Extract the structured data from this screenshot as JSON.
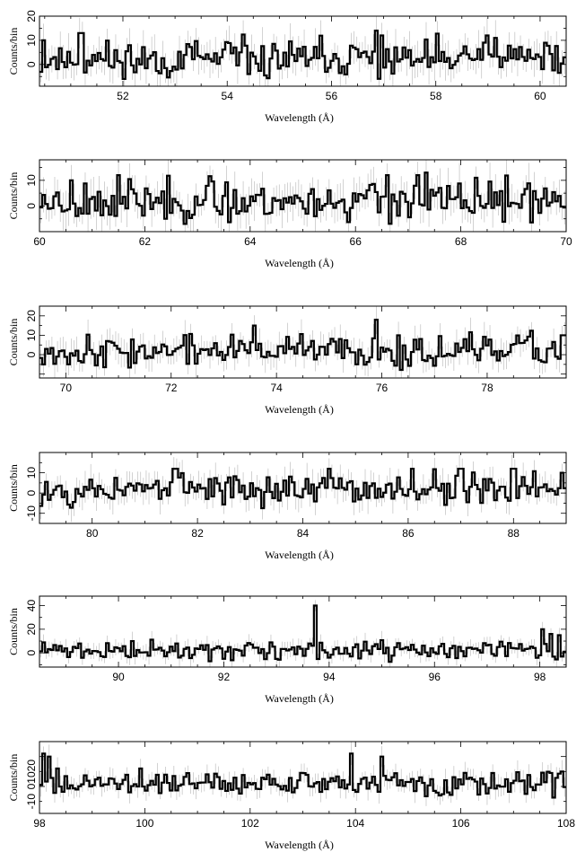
{
  "chart_data": [
    {
      "type": "line",
      "xlabel": "Wavelength (Å)",
      "ylabel": "Counts/bin",
      "xlim": [
        50.4,
        60.5
      ],
      "ylim": [
        -9,
        20
      ],
      "xticks": [
        52,
        54,
        56,
        58,
        60
      ],
      "yticks": [
        0,
        10,
        20
      ],
      "seed": 11,
      "features": [
        [
          50.5,
          10
        ],
        [
          51.2,
          13
        ],
        [
          56.85,
          14
        ],
        [
          56.95,
          12
        ],
        [
          59.0,
          12
        ],
        [
          59.15,
          11
        ],
        [
          60.1,
          9
        ]
      ]
    },
    {
      "type": "line",
      "xlabel": "Wavelength (Å)",
      "ylabel": "Counts/bin",
      "xlim": [
        60,
        70
      ],
      "ylim": [
        -10,
        18
      ],
      "xticks": [
        60,
        62,
        64,
        66,
        68,
        70
      ],
      "yticks": [
        0,
        10
      ],
      "seed": 23,
      "features": [
        [
          60.6,
          10
        ],
        [
          61.5,
          12
        ],
        [
          66.6,
          12
        ],
        [
          67.2,
          12
        ],
        [
          67.35,
          13
        ],
        [
          68.3,
          11
        ]
      ]
    },
    {
      "type": "line",
      "xlabel": "Wavelength (Å)",
      "ylabel": "Counts/bin",
      "xlim": [
        69.5,
        79.5
      ],
      "ylim": [
        -12,
        25
      ],
      "xticks": [
        70,
        72,
        74,
        76,
        78
      ],
      "yticks": [
        0,
        10,
        20
      ],
      "seed": 37,
      "features": [
        [
          73.6,
          15
        ],
        [
          75.9,
          18
        ],
        [
          76.3,
          10
        ],
        [
          79.45,
          10
        ]
      ]
    },
    {
      "type": "line",
      "xlabel": "Wavelength (Å)",
      "ylabel": "Counts/bin",
      "xlim": [
        79,
        89
      ],
      "ylim": [
        -15,
        20
      ],
      "xticks": [
        80,
        82,
        84,
        86,
        88
      ],
      "yticks": [
        0,
        10
      ],
      "yticksNeg": [
        -10
      ],
      "seed": 53,
      "features": [
        [
          81.6,
          12
        ],
        [
          84.5,
          12
        ],
        [
          86.1,
          12
        ],
        [
          87.0,
          12
        ],
        [
          88.0,
          12
        ],
        [
          88.9,
          10
        ]
      ]
    },
    {
      "type": "line",
      "xlabel": "Wavelength (Å)",
      "ylabel": "Counts/bin",
      "xlim": [
        88.5,
        98.5
      ],
      "ylim": [
        -12,
        48
      ],
      "xticks": [
        90,
        92,
        94,
        96,
        98
      ],
      "yticks": [
        0,
        20,
        40
      ],
      "seed": 71,
      "features": [
        [
          93.75,
          40
        ],
        [
          98.05,
          20
        ],
        [
          98.2,
          16
        ],
        [
          98.35,
          15
        ]
      ]
    },
    {
      "type": "line",
      "xlabel": "Wavelength (Å)",
      "ylabel": "Counts/bin",
      "xlim": [
        98,
        108
      ],
      "ylim": [
        -18,
        30
      ],
      "xticks": [
        98,
        100,
        102,
        104,
        106,
        108
      ],
      "yticks": [
        -10,
        0,
        10,
        20
      ],
      "ytickLabelOverride": "1020",
      "seed": 89,
      "features": [
        [
          98.1,
          22
        ],
        [
          98.2,
          20
        ],
        [
          98.35,
          12
        ],
        [
          99.9,
          12
        ],
        [
          103.9,
          22
        ],
        [
          104.5,
          20
        ],
        [
          107.9,
          10
        ]
      ]
    }
  ]
}
